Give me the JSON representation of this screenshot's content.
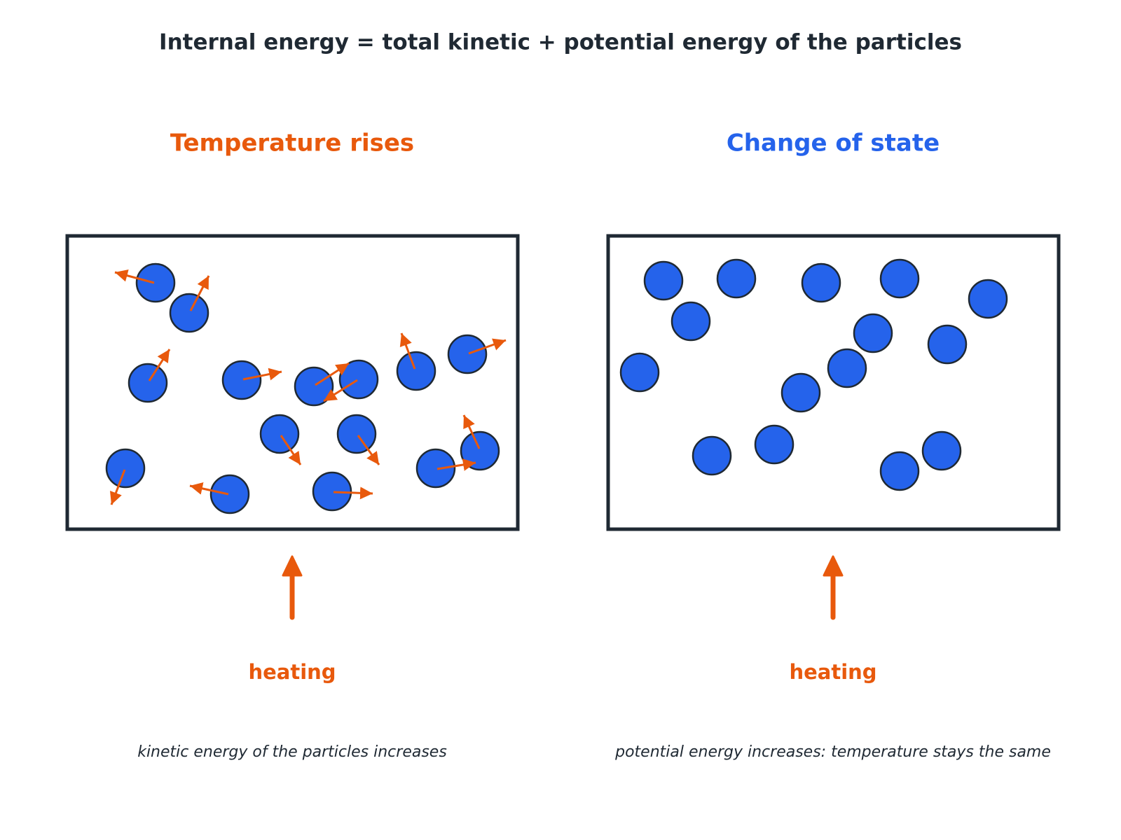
{
  "title": "Internal energy = total kinetic + potential energy of the particles",
  "colors": {
    "text": "#1f2933",
    "orange": "#e8590c",
    "blue": "#2563eb",
    "box": "#1f2933",
    "particle": "#2563eb",
    "particle_outline": "#1f2933"
  },
  "panels": [
    {
      "id": "left",
      "heading": "Temperature rises",
      "heading_color": "#e8590c",
      "heat_label": "heating",
      "caption": "kinetic energy of the particles increases"
    },
    {
      "id": "right",
      "heading": "Change of state",
      "heading_color": "#2563eb",
      "heat_label": "heating",
      "caption": "potential energy increases: temperature stays the same"
    }
  ]
}
